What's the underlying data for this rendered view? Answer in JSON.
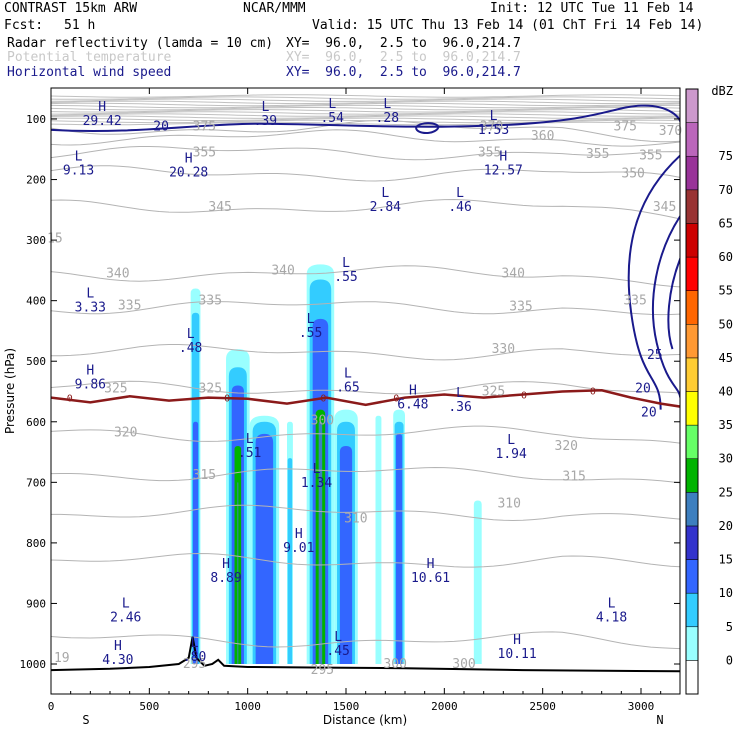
{
  "header": {
    "model": "CONTRAST 15km ARW",
    "org": "NCAR/MMM",
    "init": "Init: 12 UTC Tue 11 Feb 14",
    "fcst_label": "Fcst:",
    "fcst_value": "51 h",
    "valid": "Valid: 15 UTC Thu 13 Feb 14 (01 ChT Fri 14 Feb 14)",
    "fields": [
      {
        "name": "Radar reflectivity (lamda = 10 cm)",
        "xy": "XY=  96.0,  2.5 to  96.0,214.7",
        "color": "#000000"
      },
      {
        "name": "Potential temperature",
        "xy": "XY=  96.0,  2.5 to  96.0,214.7",
        "color": "#c8c8c8"
      },
      {
        "name": "Horizontal wind speed",
        "xy": "XY=  96.0,  2.5 to  96.0,214.7",
        "color": "#1a1a8c"
      }
    ]
  },
  "chart_data": {
    "type": "heatmap",
    "xlabel": "Distance (km)",
    "ylabel": "Pressure (hPa)",
    "x_ticks": [
      "0",
      "500",
      "1000",
      "1500",
      "2000",
      "2500",
      "3000"
    ],
    "x_tick_values": [
      0,
      500,
      1000,
      1500,
      2000,
      2500,
      3000
    ],
    "xlim": [
      0,
      3200
    ],
    "y_ticks": [
      "100",
      "200",
      "300",
      "400",
      "500",
      "600",
      "700",
      "800",
      "900",
      "1000"
    ],
    "y_tick_values": [
      100,
      200,
      300,
      400,
      500,
      600,
      700,
      800,
      900,
      1000
    ],
    "ylim": [
      55,
      1060
    ],
    "x_end_labels": {
      "left": "S",
      "right": "N"
    },
    "colorbar": {
      "unit": "dBZ",
      "levels": [
        "0",
        "5",
        "10",
        "15",
        "20",
        "25",
        "30",
        "35",
        "40",
        "45",
        "50",
        "55",
        "60",
        "65",
        "70",
        "75"
      ],
      "colors": [
        "#ffffff",
        "#99ffff",
        "#33ccff",
        "#3366ff",
        "#3333cc",
        "#3d7fbf",
        "#00b300",
        "#66ff66",
        "#ffff00",
        "#ffcc33",
        "#ff9933",
        "#ff6600",
        "#ff0000",
        "#cc0000",
        "#993333",
        "#993399",
        "#bb66bb",
        "#cc99cc"
      ]
    },
    "reflectivity_columns": [
      {
        "x0": 710,
        "x1": 760,
        "ptop": 380,
        "core": [
          {
            "level": 1,
            "ptop": 380
          },
          {
            "level": 2,
            "ptop": 420
          },
          {
            "level": 3,
            "ptop": 600
          }
        ]
      },
      {
        "x0": 890,
        "x1": 1010,
        "ptop": 480,
        "core": [
          {
            "level": 1,
            "ptop": 480
          },
          {
            "level": 2,
            "ptop": 510
          },
          {
            "level": 3,
            "ptop": 540
          },
          {
            "level": 6,
            "ptop": 640
          },
          {
            "level": 5,
            "ptop": 700
          }
        ]
      },
      {
        "x0": 1010,
        "x1": 1160,
        "ptop": 590,
        "core": [
          {
            "level": 1,
            "ptop": 590
          },
          {
            "level": 2,
            "ptop": 600
          },
          {
            "level": 3,
            "ptop": 620
          }
        ]
      },
      {
        "x0": 1200,
        "x1": 1230,
        "ptop": 600,
        "core": [
          {
            "level": 1,
            "ptop": 600
          },
          {
            "level": 2,
            "ptop": 660
          }
        ]
      },
      {
        "x0": 1300,
        "x1": 1440,
        "ptop": 340,
        "core": [
          {
            "level": 1,
            "ptop": 340
          },
          {
            "level": 2,
            "ptop": 365
          },
          {
            "level": 3,
            "ptop": 430
          },
          {
            "level": 6,
            "ptop": 580
          },
          {
            "level": 5,
            "ptop": 600
          },
          {
            "level": 7,
            "ptop": 630
          }
        ]
      },
      {
        "x0": 1440,
        "x1": 1560,
        "ptop": 580,
        "core": [
          {
            "level": 1,
            "ptop": 580
          },
          {
            "level": 2,
            "ptop": 600
          },
          {
            "level": 3,
            "ptop": 640
          }
        ]
      },
      {
        "x0": 1650,
        "x1": 1680,
        "ptop": 590,
        "core": [
          {
            "level": 1,
            "ptop": 590
          }
        ]
      },
      {
        "x0": 1740,
        "x1": 1800,
        "ptop": 580,
        "core": [
          {
            "level": 1,
            "ptop": 580
          },
          {
            "level": 2,
            "ptop": 600
          },
          {
            "level": 3,
            "ptop": 620
          }
        ]
      },
      {
        "x0": 2150,
        "x1": 2190,
        "ptop": 730,
        "core": [
          {
            "level": 1,
            "ptop": 730
          }
        ]
      }
    ],
    "theta_contours": [
      {
        "label": "375",
        "p": 115
      },
      {
        "label": "360",
        "p": 130
      },
      {
        "label": "355",
        "p": 155
      },
      {
        "label": "350",
        "p": 190
      },
      {
        "label": "345",
        "p": 245
      },
      {
        "label": "340",
        "p": 355
      },
      {
        "label": "335",
        "p": 410
      },
      {
        "label": "330",
        "p": 485
      },
      {
        "label": "325",
        "p": 545
      },
      {
        "label": "320",
        "p": 620
      },
      {
        "label": "315",
        "p": 685
      },
      {
        "label": "310",
        "p": 750
      },
      {
        "label": "305",
        "p": 830
      },
      {
        "label": "300",
        "p": 960
      }
    ],
    "theta_labels": [
      {
        "text": "375",
        "x": 780,
        "p": 112
      },
      {
        "text": "375",
        "x": 2920,
        "p": 112
      },
      {
        "text": "370",
        "x": 2240,
        "p": 112
      },
      {
        "text": "370",
        "x": 3150,
        "p": 120
      },
      {
        "text": "360",
        "x": 2500,
        "p": 128
      },
      {
        "text": "355",
        "x": 780,
        "p": 155
      },
      {
        "text": "355",
        "x": 2230,
        "p": 155
      },
      {
        "text": "355",
        "x": 2780,
        "p": 158
      },
      {
        "text": "355",
        "x": 3050,
        "p": 160
      },
      {
        "text": "350",
        "x": 2960,
        "p": 190
      },
      {
        "text": "345",
        "x": 860,
        "p": 245
      },
      {
        "text": "345",
        "x": 3120,
        "p": 245
      },
      {
        "text": "340",
        "x": 340,
        "p": 355
      },
      {
        "text": "340",
        "x": 1180,
        "p": 350
      },
      {
        "text": "340",
        "x": 2350,
        "p": 355
      },
      {
        "text": "335",
        "x": 400,
        "p": 408
      },
      {
        "text": "335",
        "x": 810,
        "p": 400
      },
      {
        "text": "335",
        "x": 2390,
        "p": 410
      },
      {
        "text": "335",
        "x": 2970,
        "p": 400
      },
      {
        "text": "330",
        "x": 2300,
        "p": 480
      },
      {
        "text": "325",
        "x": 330,
        "p": 545
      },
      {
        "text": "325",
        "x": 810,
        "p": 545
      },
      {
        "text": "325",
        "x": 2250,
        "p": 550
      },
      {
        "text": "320",
        "x": 380,
        "p": 618
      },
      {
        "text": "320",
        "x": 2620,
        "p": 640
      },
      {
        "text": "315",
        "x": 780,
        "p": 688
      },
      {
        "text": "315",
        "x": 2660,
        "p": 690
      },
      {
        "text": "310",
        "x": 1550,
        "p": 760
      },
      {
        "text": "310",
        "x": 2330,
        "p": 735
      },
      {
        "text": "300",
        "x": 1380,
        "p": 598
      },
      {
        "text": "300",
        "x": 1750,
        "p": 1000
      },
      {
        "text": "300",
        "x": 2100,
        "p": 1000
      },
      {
        "text": "295",
        "x": 730,
        "p": 1000
      },
      {
        "text": "295",
        "x": 1380,
        "p": 1010
      },
      {
        "text": "15",
        "x": 20,
        "p": 297
      },
      {
        "text": "19",
        "x": 55,
        "p": 990
      }
    ],
    "wind_labels": [
      {
        "text": "20",
        "x": 560,
        "p": 112
      },
      {
        "text": "25",
        "x": 3070,
        "p": 490
      },
      {
        "text": "20",
        "x": 3010,
        "p": 545
      },
      {
        "text": "20",
        "x": 3040,
        "p": 585
      }
    ],
    "zero_isotherm": {
      "label": "0",
      "points": [
        [
          0,
          560
        ],
        [
          200,
          568
        ],
        [
          400,
          558
        ],
        [
          600,
          565
        ],
        [
          800,
          560
        ],
        [
          1000,
          562
        ],
        [
          1200,
          570
        ],
        [
          1400,
          560
        ],
        [
          1600,
          572
        ],
        [
          1800,
          560
        ],
        [
          2000,
          555
        ],
        [
          2200,
          560
        ],
        [
          2400,
          555
        ],
        [
          2600,
          550
        ],
        [
          2800,
          548
        ],
        [
          2950,
          560
        ],
        [
          3100,
          570
        ],
        [
          3200,
          575
        ]
      ],
      "label_x": [
        80,
        880,
        1370,
        1740,
        2390,
        2740
      ]
    },
    "hl_markers": [
      {
        "letter": "H",
        "value": "29.42",
        "x": 260,
        "p": 100
      },
      {
        "letter": "L",
        "value": ".39",
        "x": 1090,
        "p": 100
      },
      {
        "letter": "L",
        "value": ".54",
        "x": 1430,
        "p": 95
      },
      {
        "letter": "L",
        "value": ".28",
        "x": 1710,
        "p": 95
      },
      {
        "letter": "L",
        "value": "1.53",
        "x": 2250,
        "p": 115
      },
      {
        "letter": "L",
        "value": "9.13",
        "x": 140,
        "p": 182
      },
      {
        "letter": "H",
        "value": "20.28",
        "x": 700,
        "p": 185
      },
      {
        "letter": "H",
        "value": "12.57",
        "x": 2300,
        "p": 182
      },
      {
        "letter": "L",
        "value": "2.84",
        "x": 1700,
        "p": 242
      },
      {
        "letter": "L",
        "value": ".46",
        "x": 2080,
        "p": 242
      },
      {
        "letter": "L",
        "value": ".55",
        "x": 1500,
        "p": 358
      },
      {
        "letter": "L",
        "value": "3.33",
        "x": 200,
        "p": 408
      },
      {
        "letter": "L",
        "value": ".55",
        "x": 1320,
        "p": 450
      },
      {
        "letter": "L",
        "value": ".48",
        "x": 710,
        "p": 475
      },
      {
        "letter": "L",
        "value": ".65",
        "x": 1510,
        "p": 540
      },
      {
        "letter": "H",
        "value": "9.86",
        "x": 200,
        "p": 535
      },
      {
        "letter": "H",
        "value": "6.48",
        "x": 1840,
        "p": 568
      },
      {
        "letter": "L",
        "value": ".36",
        "x": 2080,
        "p": 572
      },
      {
        "letter": "L",
        "value": ".51",
        "x": 1010,
        "p": 648
      },
      {
        "letter": "L",
        "value": "1.94",
        "x": 2340,
        "p": 650
      },
      {
        "letter": "L",
        "value": "1.34",
        "x": 1350,
        "p": 698
      },
      {
        "letter": "H",
        "value": "9.01",
        "x": 1260,
        "p": 805
      },
      {
        "letter": "H",
        "value": "8.89",
        "x": 890,
        "p": 855
      },
      {
        "letter": "H",
        "value": "10.61",
        "x": 1930,
        "p": 855
      },
      {
        "letter": "L",
        "value": "2.46",
        "x": 380,
        "p": 920
      },
      {
        "letter": "L",
        "value": "4.18",
        "x": 2850,
        "p": 920
      },
      {
        "letter": "L",
        "value": ".80",
        "x": 730,
        "p": 985
      },
      {
        "letter": "L",
        "value": ".45",
        "x": 1460,
        "p": 975
      },
      {
        "letter": "H",
        "value": "4.30",
        "x": 340,
        "p": 990
      },
      {
        "letter": "H",
        "value": "10.11",
        "x": 2370,
        "p": 980
      }
    ],
    "terrain": {
      "points": [
        [
          0,
          1010
        ],
        [
          300,
          1008
        ],
        [
          500,
          1005
        ],
        [
          650,
          1000
        ],
        [
          700,
          990
        ],
        [
          720,
          955
        ],
        [
          740,
          990
        ],
        [
          780,
          1003
        ],
        [
          820,
          1000
        ],
        [
          850,
          993
        ],
        [
          880,
          1003
        ],
        [
          1000,
          1005
        ],
        [
          1400,
          1006
        ],
        [
          1800,
          1007
        ],
        [
          2400,
          1010
        ],
        [
          3200,
          1012
        ]
      ]
    }
  }
}
